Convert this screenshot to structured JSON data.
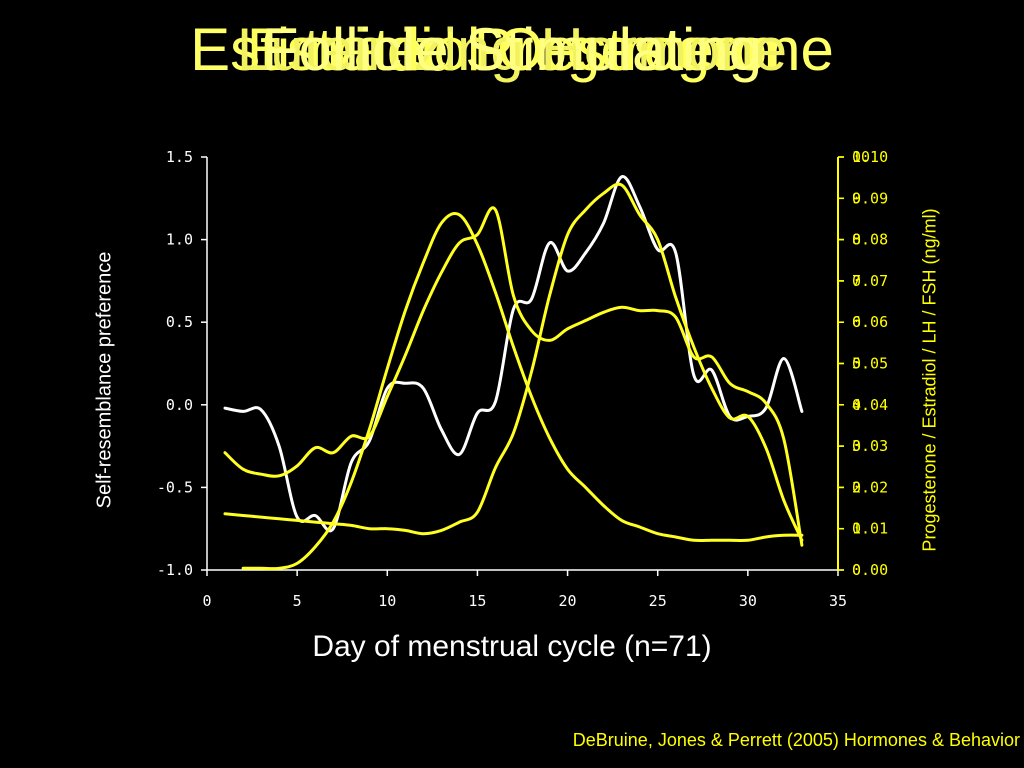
{
  "titles": [
    "Estimated Progesterone",
    "Estradiol Oestrogen",
    "Luteinizing Hormone",
    "Follicle Stimulating"
  ],
  "xlabel": "Day of menstrual cycle (n=71)",
  "ylabel_left": "Self-resemblance preference",
  "ylabel_right": "Progesterone / Estradiol / LH / FSH (ng/ml)",
  "citation": "DeBruine, Jones & Perrett (2005) Hormones & Behavior",
  "colors": {
    "background": "#000000",
    "primary": "#ffffff",
    "hormone": "#ffff22",
    "axis": "#ffffff",
    "right_axis": "#ffff00"
  },
  "chart_data": {
    "type": "line",
    "xlabel": "Day of menstrual cycle (n=71)",
    "ylabel": "Self-resemblance preference",
    "xlim": [
      0,
      35
    ],
    "ylim": [
      -1.0,
      1.5
    ],
    "x_ticks": [
      0,
      5,
      10,
      15,
      20,
      25,
      30,
      35
    ],
    "x_tick_labels": [
      "0",
      "5",
      "10",
      "15",
      "20",
      "25",
      "30",
      "35"
    ],
    "y_ticks": [
      -1.0,
      -0.5,
      0.0,
      0.5,
      1.0,
      1.5
    ],
    "y_tick_labels": [
      "-1.0",
      "-0.5",
      "0.0",
      "0.5",
      "1.0",
      "1.5"
    ],
    "right_axes": [
      {
        "ticks": [
          0,
          1,
          2,
          3,
          4,
          5,
          6,
          7,
          8,
          9,
          10
        ],
        "labels": [
          "0",
          "1",
          "2",
          "3",
          "4",
          "5",
          "6",
          "7",
          "8",
          "9",
          "10"
        ]
      },
      {
        "ticks": [
          0,
          0.01,
          0.02,
          0.03,
          0.04,
          0.05,
          0.06,
          0.07,
          0.08,
          0.09,
          0.1
        ],
        "labels": [
          "0.00",
          "0.01",
          "0.02",
          "0.03",
          "0.04",
          "0.05",
          "0.06",
          "0.07",
          "0.08",
          "0.09",
          "0.10"
        ]
      }
    ],
    "series": [
      {
        "name": "Self-resemblance preference",
        "color": "#ffffff",
        "x": [
          1,
          2,
          3,
          4,
          5,
          6,
          7,
          8,
          9,
          10,
          11,
          12,
          13,
          14,
          15,
          16,
          17,
          18,
          19,
          20,
          21,
          22,
          23,
          24,
          25,
          26,
          27,
          28,
          29,
          30,
          31,
          32,
          33
        ],
        "y": [
          -0.02,
          -0.04,
          -0.03,
          -0.25,
          -0.68,
          -0.67,
          -0.75,
          -0.35,
          -0.22,
          0.1,
          0.13,
          0.1,
          -0.15,
          -0.3,
          -0.05,
          0.02,
          0.58,
          0.64,
          0.98,
          0.81,
          0.92,
          1.1,
          1.38,
          1.2,
          0.94,
          0.92,
          0.18,
          0.21,
          -0.07,
          -0.07,
          -0.02,
          0.28,
          -0.04
        ]
      },
      {
        "color": "#ffff22",
        "x": [
          1,
          2,
          3,
          4,
          5,
          6,
          7,
          8,
          9,
          10,
          11,
          12,
          13,
          14,
          15,
          16,
          17,
          18,
          19,
          20,
          21,
          22,
          23,
          24,
          25,
          26,
          27,
          28,
          29,
          30,
          31,
          32,
          33
        ],
        "y": [
          -0.29,
          -0.39,
          -0.42,
          -0.43,
          -0.37,
          -0.26,
          -0.29,
          -0.19,
          -0.19,
          0.05,
          0.3,
          0.57,
          0.8,
          0.98,
          1.03,
          1.18,
          0.66,
          0.45,
          0.39,
          0.46,
          0.51,
          0.56,
          0.59,
          0.57,
          0.57,
          0.53,
          0.29,
          0.29,
          0.13,
          0.08,
          0.01,
          -0.21,
          -0.85
        ]
      },
      {
        "color": "#ffff22",
        "x": [
          2,
          3,
          4,
          5,
          6,
          7,
          8,
          9,
          10,
          11,
          12,
          13,
          14,
          15,
          16,
          17,
          18,
          19,
          20,
          21,
          22,
          23,
          24,
          25,
          26,
          27,
          28,
          29,
          30,
          31,
          32,
          33
        ],
        "y": [
          -0.99,
          -0.99,
          -0.99,
          -0.96,
          -0.86,
          -0.71,
          -0.47,
          -0.15,
          0.22,
          0.57,
          0.86,
          1.1,
          1.15,
          0.97,
          0.68,
          0.35,
          0.05,
          -0.2,
          -0.39,
          -0.5,
          -0.61,
          -0.7,
          -0.74,
          -0.78,
          -0.8,
          -0.82,
          -0.82,
          -0.82,
          -0.82,
          -0.8,
          -0.79,
          -0.79
        ]
      },
      {
        "color": "#ffff22",
        "x": [
          1,
          2,
          3,
          4,
          5,
          6,
          7,
          8,
          9,
          10,
          11,
          12,
          13,
          14,
          15,
          16,
          17,
          18,
          19,
          20,
          21,
          22,
          23,
          24,
          25,
          26,
          27,
          28,
          29,
          30,
          31,
          32,
          33
        ],
        "y": [
          -0.66,
          -0.67,
          -0.68,
          -0.69,
          -0.7,
          -0.71,
          -0.72,
          -0.73,
          -0.75,
          -0.75,
          -0.76,
          -0.78,
          -0.76,
          -0.71,
          -0.65,
          -0.38,
          -0.17,
          0.2,
          0.66,
          1.03,
          1.18,
          1.28,
          1.33,
          1.15,
          1.0,
          0.65,
          0.35,
          0.1,
          -0.08,
          -0.07,
          -0.26,
          -0.58,
          -0.82
        ]
      }
    ]
  }
}
